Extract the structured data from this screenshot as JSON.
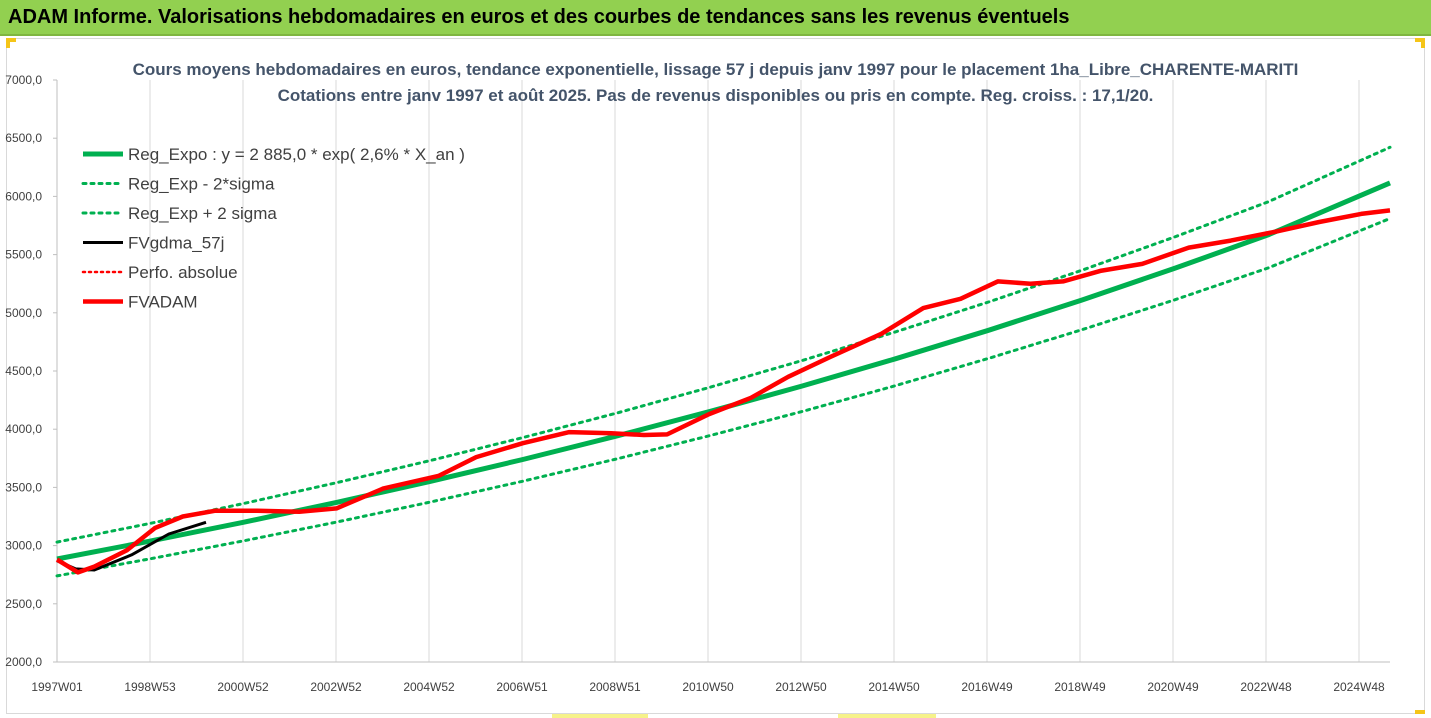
{
  "header": {
    "title": "ADAM Informe. Valorisations hebdomadaires en euros et des courbes de tendances sans les revenus éventuels"
  },
  "colors": {
    "banner": "#92d050",
    "trend": "#00b050",
    "fvadam": "#ff0000",
    "fvgdma": "#000000",
    "grid": "#d9d9d9",
    "title_text": "#44546a"
  },
  "chart_data": {
    "type": "line",
    "title": "Cours moyens hebdomadaires en euros, tendance exponentielle, lissage 57 j depuis janv 1997 pour le placement 1ha_Libre_CHARENTE-MARITI",
    "subtitle": "Cotations entre janv 1997 et août 2025. Pas de revenus disponibles ou pris en compte. Reg. croiss. : 17,1/20.",
    "xlabel": "",
    "ylabel": "",
    "x_start_year": 1997,
    "x_end_year": 2025.62,
    "ylim": [
      2000,
      7000
    ],
    "y_ticks": [
      "2000,0",
      "2500,0",
      "3000,0",
      "3500,0",
      "4000,0",
      "4500,0",
      "5000,0",
      "5500,0",
      "6000,0",
      "6500,0",
      "7000,0"
    ],
    "x_tick_labels": [
      "1997W01",
      "1998W53",
      "2000W52",
      "2002W52",
      "2004W52",
      "2006W51",
      "2008W51",
      "2010W50",
      "2012W50",
      "2014W50",
      "2016W49",
      "2018W49",
      "2020W49",
      "2022W48",
      "2024W48"
    ],
    "grid": "vertical",
    "legend_position": "top-left",
    "series": [
      {
        "name": "Reg_Expo : y = 2 885,0 * exp( 2,6% *  X_an )",
        "style": "solid-green",
        "x": [
          1997,
          1999,
          2001,
          2003,
          2005,
          2007,
          2009,
          2011,
          2013,
          2015,
          2017,
          2019,
          2021,
          2023,
          2025.62
        ],
        "values": [
          2885,
          3039,
          3200,
          3371,
          3551,
          3740,
          3940,
          4150,
          4371,
          4605,
          4850,
          5109,
          5382,
          5669,
          6116
        ]
      },
      {
        "name": "Reg_Exp - 2*sigma",
        "style": "dotted-green",
        "x": [
          1997,
          1999,
          2001,
          2003,
          2005,
          2007,
          2009,
          2011,
          2013,
          2015,
          2017,
          2019,
          2021,
          2023,
          2025.62
        ],
        "values": [
          2740,
          2887,
          3040,
          3202,
          3373,
          3553,
          3743,
          3943,
          4152,
          4374,
          4608,
          4854,
          5112,
          5385,
          5810
        ]
      },
      {
        "name": "Reg_Exp + 2 sigma",
        "style": "dotted-green",
        "x": [
          1997,
          1999,
          2001,
          2003,
          2005,
          2007,
          2009,
          2011,
          2013,
          2015,
          2017,
          2019,
          2021,
          2023,
          2025.62
        ],
        "values": [
          3030,
          3191,
          3361,
          3540,
          3729,
          3928,
          4137,
          4358,
          4590,
          4836,
          5093,
          5365,
          5652,
          5953,
          6422
        ]
      },
      {
        "name": "FVgdma_57j",
        "style": "solid-black",
        "x": [
          1997,
          1997.4,
          1997.8,
          1998.6,
          1999.4,
          2000.2
        ],
        "values": [
          2870,
          2800,
          2790,
          2920,
          3100,
          3200
        ]
      },
      {
        "name": "Perfo. absolue",
        "style": "dotted-red",
        "x": [],
        "values": []
      },
      {
        "name": "FVADAM",
        "style": "solid-red",
        "x": [
          1997,
          1997.45,
          1997.8,
          1998.5,
          1999.1,
          1999.7,
          2000.4,
          2001.3,
          2002.2,
          2003.0,
          2004.0,
          2005.2,
          2006.0,
          2007.0,
          2008.0,
          2008.9,
          2009.6,
          2010.1,
          2011.0,
          2011.9,
          2012.7,
          2013.6,
          2014.7,
          2015.6,
          2016.4,
          2017.2,
          2017.9,
          2018.6,
          2019.4,
          2020.3,
          2021.3,
          2022.2,
          2023.2,
          2024.1,
          2025.0,
          2025.62
        ],
        "values": [
          2880,
          2770,
          2820,
          2960,
          3150,
          3250,
          3300,
          3300,
          3290,
          3320,
          3490,
          3600,
          3760,
          3880,
          3975,
          3965,
          3950,
          3955,
          4130,
          4270,
          4450,
          4620,
          4820,
          5040,
          5120,
          5270,
          5250,
          5270,
          5360,
          5420,
          5560,
          5620,
          5700,
          5780,
          5850,
          5880
        ]
      }
    ]
  }
}
